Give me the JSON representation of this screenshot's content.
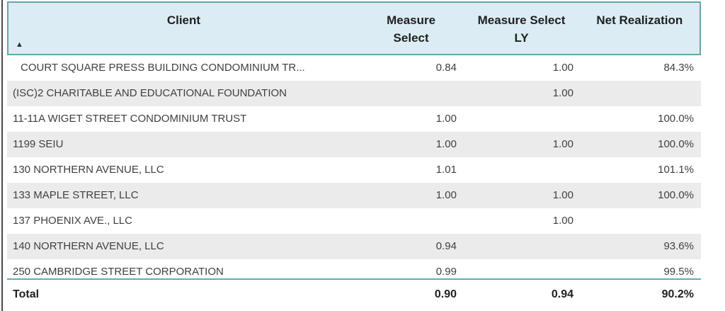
{
  "table": {
    "columns": [
      {
        "label": "Client"
      },
      {
        "label": "Measure Select"
      },
      {
        "label": "Measure Select LY"
      },
      {
        "label": "Net Realization"
      }
    ],
    "sort_icon": "▲",
    "rows": [
      {
        "client": "COURT SQUARE PRESS BUILDING CONDOMINIUM TR...",
        "measure_select": "0.84",
        "measure_select_ly": "1.00",
        "net_realization": "84.3%"
      },
      {
        "client": "(ISC)2 CHARITABLE AND EDUCATIONAL FOUNDATION",
        "measure_select": "",
        "measure_select_ly": "1.00",
        "net_realization": ""
      },
      {
        "client": "11-11A WIGET STREET CONDOMINIUM TRUST",
        "measure_select": "1.00",
        "measure_select_ly": "",
        "net_realization": "100.0%"
      },
      {
        "client": "1199 SEIU",
        "measure_select": "1.00",
        "measure_select_ly": "1.00",
        "net_realization": "100.0%"
      },
      {
        "client": "130 NORTHERN AVENUE, LLC",
        "measure_select": "1.01",
        "measure_select_ly": "",
        "net_realization": "101.1%"
      },
      {
        "client": "133 MAPLE STREET, LLC",
        "measure_select": "1.00",
        "measure_select_ly": "1.00",
        "net_realization": "100.0%"
      },
      {
        "client": "137 PHOENIX AVE., LLC",
        "measure_select": "",
        "measure_select_ly": "1.00",
        "net_realization": ""
      },
      {
        "client": "140 NORTHERN AVENUE, LLC",
        "measure_select": "0.94",
        "measure_select_ly": "",
        "net_realization": "93.6%"
      },
      {
        "client": "250 CAMBRIDGE STREET CORPORATION",
        "measure_select": "0.99",
        "measure_select_ly": "",
        "net_realization": "99.5%"
      }
    ],
    "total": {
      "label": "Total",
      "measure_select": "0.90",
      "measure_select_ly": "0.94",
      "net_realization": "90.2%"
    }
  },
  "colors": {
    "header_bg": "#dbecf4",
    "header_border": "#62a8a6",
    "header_text": "#1f1f1f",
    "row_text": "#3f3f3f",
    "alt_row_bg": "#ebebeb",
    "total_divider": "#5cb0aa"
  }
}
